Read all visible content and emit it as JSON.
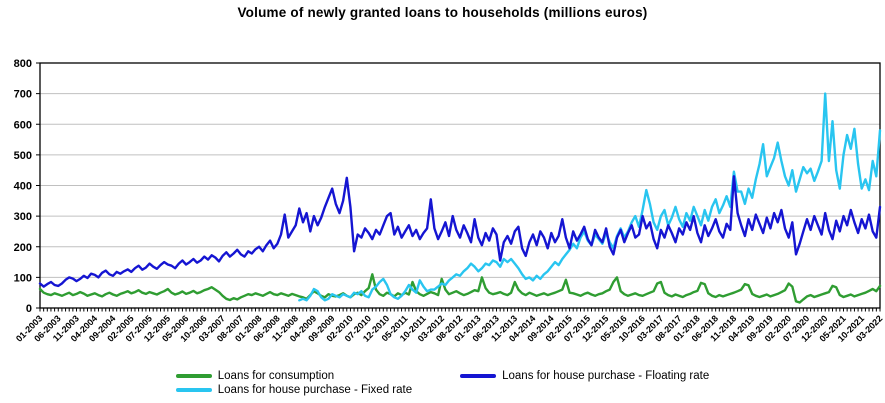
{
  "title": "Volume of newly granted loans to households (millions euros)",
  "chart_data": {
    "type": "line",
    "background": "#ffffff",
    "grid": "horizontal",
    "grid_color": "#c0c0c0",
    "axis_color": "#000000",
    "legend_position": "bottom",
    "ylim": [
      0,
      800
    ],
    "y_ticks": [
      0,
      100,
      200,
      300,
      400,
      500,
      600,
      700,
      800
    ],
    "x_label_step": 5,
    "x_start": "01-2003",
    "x_end": "03-2022",
    "x_labels": [
      "01-2003",
      "06-2003",
      "11-2003",
      "04-2004",
      "09-2004",
      "02-2005",
      "07-2005",
      "12-2005",
      "05-2006",
      "10-2006",
      "03-2007",
      "08-2007",
      "01-2008",
      "06-2008",
      "11-2008",
      "04-2009",
      "09-2009",
      "02-2010",
      "07-2010",
      "12-2010",
      "05-2011",
      "10-2011",
      "03-2012",
      "08-2012",
      "01-2013",
      "06-2013",
      "11-2013",
      "04-2014",
      "09-2014",
      "02-2015",
      "07-2015",
      "12-2015",
      "05-2016",
      "10-2016",
      "03-2017",
      "08-2017",
      "01-2018",
      "06-2018",
      "11-2018",
      "04-2019",
      "09-2019",
      "02-2020",
      "07-2020",
      "12-2020",
      "05-2021",
      "10-2021",
      "03-2022"
    ],
    "series": [
      {
        "id": "consumption",
        "name": "Loans for consumption",
        "color": "#2f9d32",
        "values": [
          62,
          50,
          45,
          42,
          48,
          44,
          40,
          45,
          50,
          42,
          46,
          52,
          47,
          40,
          44,
          48,
          42,
          38,
          45,
          50,
          44,
          40,
          46,
          50,
          55,
          48,
          52,
          58,
          50,
          46,
          52,
          48,
          44,
          50,
          55,
          62,
          50,
          44,
          48,
          54,
          46,
          50,
          56,
          48,
          52,
          58,
          62,
          68,
          60,
          52,
          40,
          30,
          26,
          32,
          28,
          35,
          40,
          45,
          42,
          48,
          44,
          40,
          46,
          52,
          45,
          42,
          48,
          44,
          40,
          46,
          42,
          38,
          35,
          30,
          42,
          55,
          48,
          40,
          35,
          45,
          40,
          38,
          42,
          48,
          40,
          35,
          45,
          50,
          42,
          55,
          65,
          110,
          60,
          45,
          40,
          50,
          45,
          38,
          48,
          42,
          50,
          44,
          85,
          55,
          45,
          40,
          46,
          52,
          48,
          42,
          95,
          60,
          45,
          50,
          55,
          48,
          42,
          46,
          52,
          58,
          55,
          100,
          65,
          50,
          45,
          48,
          52,
          46,
          42,
          50,
          85,
          60,
          48,
          42,
          50,
          45,
          40,
          44,
          48,
          42,
          46,
          50,
          55,
          60,
          92,
          50,
          48,
          44,
          40,
          46,
          50,
          44,
          40,
          45,
          48,
          55,
          60,
          85,
          100,
          55,
          45,
          40,
          44,
          48,
          42,
          40,
          45,
          50,
          55,
          80,
          85,
          50,
          42,
          38,
          44,
          40,
          36,
          42,
          46,
          52,
          56,
          82,
          78,
          48,
          40,
          36,
          42,
          38,
          42,
          46,
          50,
          55,
          60,
          78,
          74,
          46,
          40,
          36,
          40,
          44,
          38,
          42,
          46,
          52,
          58,
          80,
          70,
          22,
          18,
          28,
          38,
          42,
          36,
          40,
          44,
          48,
          52,
          72,
          68,
          42,
          36,
          40,
          44,
          38,
          42,
          46,
          50,
          56,
          62,
          55,
          72
        ]
      },
      {
        "id": "fixed-rate",
        "name": "Loans for house purchase - Fixed rate",
        "color": "#29c5f0",
        "values": [
          null,
          null,
          null,
          null,
          null,
          null,
          null,
          null,
          null,
          null,
          null,
          null,
          null,
          null,
          null,
          null,
          null,
          null,
          null,
          null,
          null,
          null,
          null,
          null,
          null,
          null,
          null,
          null,
          null,
          null,
          null,
          null,
          null,
          null,
          null,
          null,
          null,
          null,
          null,
          null,
          null,
          null,
          null,
          null,
          null,
          null,
          null,
          null,
          null,
          null,
          null,
          null,
          null,
          null,
          null,
          null,
          null,
          null,
          null,
          null,
          null,
          null,
          null,
          null,
          null,
          null,
          null,
          null,
          null,
          null,
          null,
          25,
          30,
          25,
          40,
          62,
          55,
          35,
          25,
          30,
          45,
          40,
          35,
          45,
          40,
          35,
          50,
          45,
          55,
          40,
          35,
          60,
          70,
          85,
          95,
          75,
          45,
          35,
          30,
          40,
          55,
          75,
          60,
          50,
          90,
          70,
          55,
          60,
          60,
          70,
          80,
          75,
          90,
          100,
          110,
          105,
          120,
          130,
          145,
          135,
          120,
          130,
          145,
          140,
          155,
          150,
          135,
          160,
          150,
          160,
          145,
          130,
          110,
          95,
          100,
          90,
          105,
          95,
          110,
          120,
          135,
          150,
          140,
          160,
          175,
          190,
          210,
          195,
          230,
          250,
          220,
          205,
          240,
          225,
          210,
          245,
          215,
          195,
          235,
          260,
          230,
          250,
          280,
          300,
          265,
          320,
          385,
          340,
          280,
          255,
          300,
          320,
          270,
          295,
          330,
          290,
          265,
          310,
          285,
          330,
          300,
          270,
          320,
          285,
          330,
          355,
          310,
          335,
          365,
          330,
          445,
          380,
          380,
          340,
          390,
          360,
          420,
          470,
          535,
          430,
          460,
          490,
          540,
          480,
          430,
          400,
          450,
          380,
          420,
          460,
          440,
          455,
          415,
          445,
          480,
          700,
          480,
          610,
          450,
          390,
          500,
          565,
          520,
          585,
          470,
          390,
          420,
          385,
          480,
          430,
          580
        ]
      },
      {
        "id": "floating-rate",
        "name": "Loans for house purchase - Floating rate",
        "color": "#1515d2",
        "values": [
          80,
          70,
          78,
          85,
          75,
          72,
          80,
          92,
          100,
          96,
          88,
          95,
          105,
          98,
          112,
          108,
          100,
          115,
          122,
          110,
          105,
          118,
          112,
          120,
          126,
          118,
          130,
          138,
          125,
          132,
          145,
          135,
          128,
          140,
          150,
          142,
          138,
          130,
          145,
          155,
          142,
          150,
          160,
          148,
          155,
          168,
          158,
          172,
          165,
          152,
          170,
          182,
          168,
          178,
          190,
          175,
          168,
          185,
          178,
          192,
          200,
          185,
          205,
          220,
          195,
          210,
          240,
          305,
          230,
          250,
          270,
          325,
          280,
          310,
          250,
          300,
          270,
          295,
          330,
          360,
          390,
          340,
          310,
          350,
          425,
          330,
          185,
          240,
          230,
          260,
          245,
          225,
          255,
          240,
          270,
          300,
          310,
          240,
          265,
          230,
          250,
          270,
          235,
          255,
          225,
          245,
          260,
          355,
          260,
          225,
          250,
          280,
          235,
          300,
          255,
          230,
          270,
          245,
          215,
          290,
          230,
          205,
          245,
          220,
          260,
          240,
          155,
          215,
          235,
          210,
          250,
          265,
          195,
          170,
          215,
          240,
          205,
          250,
          230,
          195,
          245,
          215,
          235,
          290,
          230,
          195,
          250,
          220,
          240,
          265,
          225,
          205,
          255,
          230,
          215,
          260,
          200,
          175,
          230,
          255,
          215,
          245,
          270,
          230,
          240,
          300,
          260,
          280,
          225,
          195,
          255,
          230,
          270,
          245,
          215,
          260,
          240,
          280,
          255,
          300,
          245,
          215,
          270,
          235,
          260,
          290,
          250,
          230,
          275,
          255,
          430,
          310,
          270,
          235,
          290,
          255,
          305,
          275,
          245,
          295,
          260,
          310,
          280,
          320,
          260,
          230,
          280,
          175,
          210,
          250,
          290,
          255,
          300,
          270,
          240,
          310,
          255,
          225,
          285,
          250,
          300,
          270,
          320,
          280,
          245,
          290,
          260,
          305,
          250,
          230,
          330
        ]
      }
    ]
  }
}
